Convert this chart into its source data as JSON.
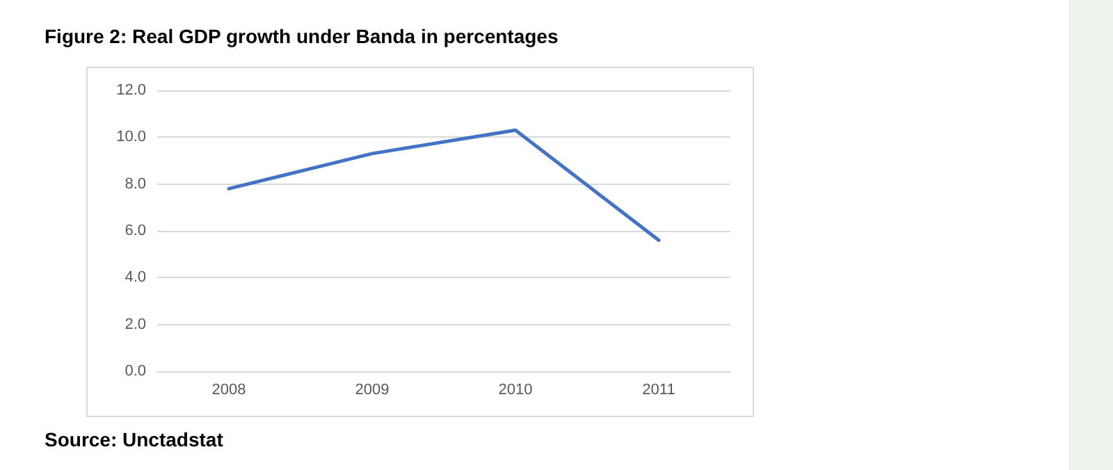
{
  "chart_data": {
    "type": "line",
    "title": "Figure 2: Real GDP growth under Banda in percentages",
    "categories": [
      "2008",
      "2009",
      "2010",
      "2011"
    ],
    "series": [
      {
        "color": "#4472c4",
        "values": [
          7.8,
          9.3,
          10.3,
          5.6
        ]
      }
    ],
    "ylim": [
      0,
      12
    ],
    "yticks": [
      {
        "value": 0,
        "label": "0.0"
      },
      {
        "value": 2,
        "label": "2.0"
      },
      {
        "value": 4,
        "label": "4.0"
      },
      {
        "value": 6,
        "label": "6.0"
      },
      {
        "value": 8,
        "label": "8.0"
      },
      {
        "value": 10,
        "label": "10.0"
      },
      {
        "value": 12,
        "label": "12.0"
      }
    ],
    "grid": "y",
    "marker": "none",
    "line_style": "solid",
    "annotations": [
      "Source: Unctadstat"
    ]
  }
}
